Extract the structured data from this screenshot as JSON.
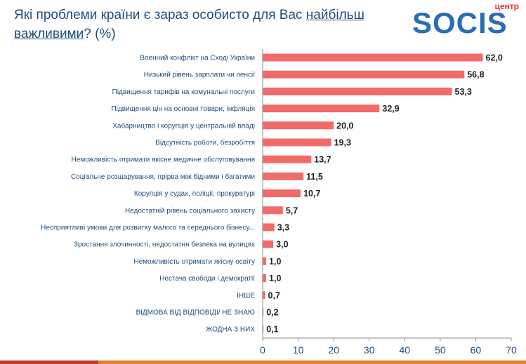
{
  "title": {
    "prefix": "Які проблеми країни є зараз особисто для Вас",
    "emphasis": "найбільш важливими",
    "suffix": "? (%)"
  },
  "logo": {
    "top_text": "центр",
    "main_text": "SOCIS"
  },
  "colors": {
    "bar": "#f26b6b",
    "title": "#1f4e79",
    "logo_blue": "#2a6db5",
    "logo_red": "#e5352b"
  },
  "chart_data": {
    "type": "bar",
    "orientation": "horizontal",
    "categories": [
      "Военний конфлікт на Сході України",
      "Низький рівень зарплати чи пенсії",
      "Підвищення тарифів на комунальні послуги",
      "Підвищення цін на основні товари, інфляція",
      "Хабарництво і корупція у центральній владі",
      "Відсутність роботи, безробіття",
      "Неможливість отримати якісне медичне обслуговування",
      "Соціальне розшарування, прірва між бідними і багатими",
      "Корупція у судах, поліції, прокуратурі",
      "Недостатній рівень соціального захисту",
      "Несприятливі умови для розвитку малого та середнього бізнесу...",
      "Зростання злочинності, недостатня безпека на вулицях",
      "Неможливість отримати якісну освіту",
      "Нестача свободи і демократії",
      "ІНШЕ",
      "ВІДМОВА ВІД ВІДПОВІДІ/ НЕ ЗНАЮ",
      "ЖОДНА З НИХ"
    ],
    "values": [
      62.0,
      56.8,
      53.3,
      32.9,
      20.0,
      19.3,
      13.7,
      11.5,
      10.7,
      5.7,
      3.3,
      3.0,
      1.0,
      1.0,
      0.7,
      0.2,
      0.1
    ],
    "value_labels": [
      "62,0",
      "56,8",
      "53,3",
      "32,9",
      "20,0",
      "19,3",
      "13,7",
      "11,5",
      "10,7",
      "5,7",
      "3,3",
      "3,0",
      "1,0",
      "1,0",
      "0,7",
      "0,2",
      "0,1"
    ],
    "xlim": [
      0,
      70
    ],
    "xticks": [
      "0",
      "10",
      "20",
      "30",
      "40",
      "50",
      "60",
      "70"
    ],
    "xtick_values": [
      0,
      10,
      20,
      30,
      40,
      50,
      60,
      70
    ],
    "grid": false,
    "legend": "none"
  }
}
